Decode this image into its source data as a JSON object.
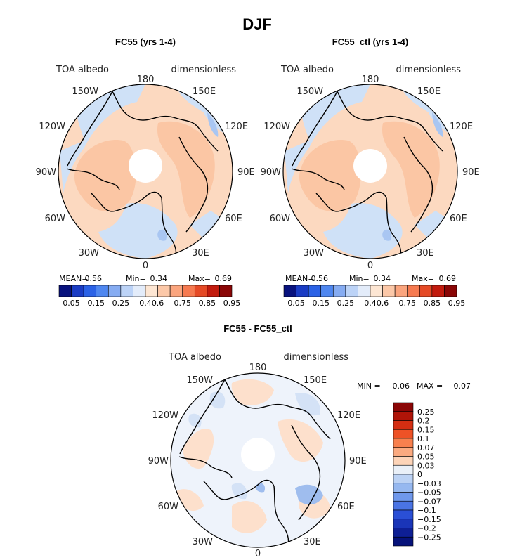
{
  "figure": {
    "title": "DJF",
    "colors": {
      "land": "#000000",
      "pole_hole": "#ffffff"
    }
  },
  "chart_data": [
    {
      "type": "heatmap",
      "projection": "north-polar-stereographic",
      "title": "FC55 (yrs 1-4)",
      "variable_label": "TOA albedo",
      "units_label": "dimensionless",
      "longitude_labels": [
        "180",
        "150E",
        "120E",
        "90E",
        "60E",
        "30E",
        "0",
        "30W",
        "60W",
        "90W",
        "120W",
        "150W"
      ],
      "stats": {
        "mean_label": "MEAN=",
        "mean": "0.56",
        "min_label": "Min=",
        "min": "0.34",
        "max_label": "Max=",
        "max": "0.69"
      },
      "colorbar": {
        "orientation": "horizontal",
        "colors": [
          "#08127e",
          "#1a3cc4",
          "#2b62e6",
          "#4f87f0",
          "#86acf2",
          "#bcd3f7",
          "#e3ecfa",
          "#fde6d3",
          "#fcc8a8",
          "#fba57e",
          "#f67a50",
          "#e54a26",
          "#c21b0e",
          "#8a0606"
        ],
        "tick_labels": [
          "0.05",
          "0.15",
          "0.25",
          "0.4",
          "0.6",
          "0.75",
          "0.85",
          "0.95"
        ]
      }
    },
    {
      "type": "heatmap",
      "projection": "north-polar-stereographic",
      "title": "FC55_ctl (yrs 1-4)",
      "variable_label": "TOA albedo",
      "units_label": "dimensionless",
      "longitude_labels": [
        "180",
        "150E",
        "120E",
        "90E",
        "60E",
        "30E",
        "0",
        "30W",
        "60W",
        "90W",
        "120W",
        "150W"
      ],
      "stats": {
        "mean_label": "MEAN=",
        "mean": "0.56",
        "min_label": "Min=",
        "min": "0.34",
        "max_label": "Max=",
        "max": "0.69"
      },
      "colorbar": {
        "orientation": "horizontal",
        "colors": [
          "#08127e",
          "#1a3cc4",
          "#2b62e6",
          "#4f87f0",
          "#86acf2",
          "#bcd3f7",
          "#e3ecfa",
          "#fde6d3",
          "#fcc8a8",
          "#fba57e",
          "#f67a50",
          "#e54a26",
          "#c21b0e",
          "#8a0606"
        ],
        "tick_labels": [
          "0.05",
          "0.15",
          "0.25",
          "0.4",
          "0.6",
          "0.75",
          "0.85",
          "0.95"
        ]
      }
    },
    {
      "type": "heatmap",
      "projection": "north-polar-stereographic",
      "title": "FC55 - FC55_ctl",
      "variable_label": "TOA albedo",
      "units_label": "dimensionless",
      "longitude_labels": [
        "180",
        "150E",
        "120E",
        "90E",
        "60E",
        "30E",
        "0",
        "30W",
        "60W",
        "90W",
        "120W",
        "150W"
      ],
      "stats": {
        "min_label": "MIN =",
        "min": "−0.06",
        "max_label": "MAX =",
        "max": "0.07"
      },
      "colorbar": {
        "orientation": "vertical",
        "colors": [
          "#8a0606",
          "#b01408",
          "#d42e12",
          "#ee5226",
          "#f8804e",
          "#fbaa80",
          "#fdd4b8",
          "#eaf0f8",
          "#bcd2f4",
          "#96b8f0",
          "#6f98ec",
          "#4a74e4",
          "#2a4fd6",
          "#1a35b8",
          "#0e1f95",
          "#06127a"
        ],
        "tick_labels": [
          "0.25",
          "0.2",
          "0.15",
          "0.1",
          "0.07",
          "0.05",
          "0.03",
          "0",
          "−0.03",
          "−0.05",
          "−0.07",
          "−0.1",
          "−0.15",
          "−0.2",
          "−0.25"
        ]
      }
    }
  ]
}
